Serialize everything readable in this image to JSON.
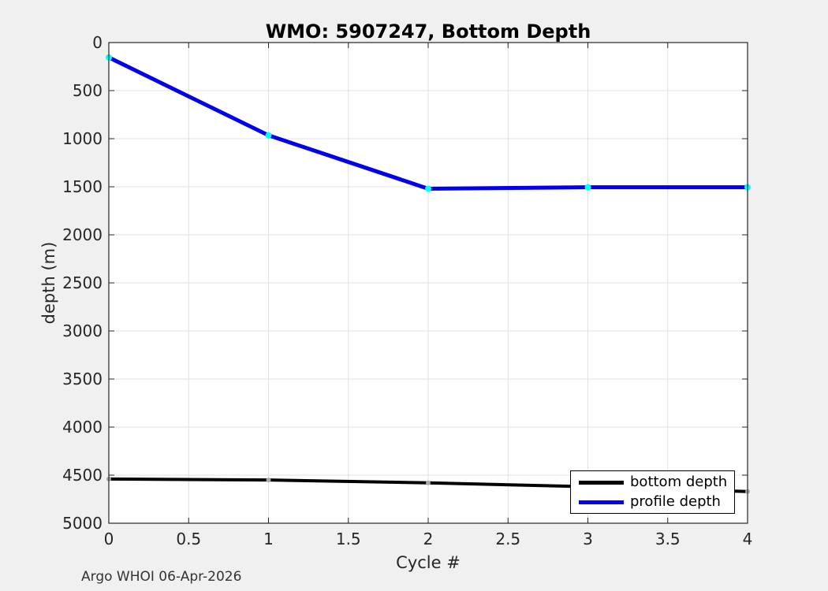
{
  "title": "WMO: 5907247, Bottom Depth",
  "footer": "Argo WHOI 06-Apr-2026",
  "chart_data": {
    "type": "line",
    "title": "WMO: 5907247, Bottom Depth",
    "xlabel": "Cycle #",
    "ylabel": "depth (m)",
    "x": [
      0,
      1,
      2,
      3,
      4
    ],
    "series": [
      {
        "name": "bottom depth",
        "color": "#000000",
        "marker_color": "#a9a9a9",
        "line_width": 4,
        "marker_radius": 3,
        "values": [
          4540,
          4550,
          4580,
          4620,
          4670
        ]
      },
      {
        "name": "profile depth",
        "color": "#0000ee",
        "marker_color": "#00ffff",
        "line_width": 5,
        "marker_radius": 4,
        "values": [
          155,
          965,
          1520,
          1505,
          1505
        ]
      }
    ],
    "xlim": [
      0,
      4
    ],
    "ylim": [
      0,
      5000
    ],
    "y_axis_inverted": true,
    "x_ticks": [
      0,
      0.5,
      1,
      1.5,
      2,
      2.5,
      3,
      3.5,
      4
    ],
    "x_tick_labels": [
      "0",
      "0.5",
      "1",
      "1.5",
      "2",
      "2.5",
      "3",
      "3.5",
      "4"
    ],
    "y_ticks": [
      0,
      500,
      1000,
      1500,
      2000,
      2500,
      3000,
      3500,
      4000,
      4500,
      5000
    ],
    "y_tick_labels": [
      "0",
      "500",
      "1000",
      "1500",
      "2000",
      "2500",
      "3000",
      "3500",
      "4000",
      "4500",
      "5000"
    ],
    "grid": true,
    "legend_position": "bottom-right",
    "colors": {
      "figure_background": "#f0f0f0",
      "plot_background": "#ffffff",
      "grid": "#e0e0e0",
      "axis": "#262626",
      "tick_text": "#262626"
    }
  },
  "legend": {
    "items": [
      {
        "label": "bottom depth",
        "color": "#000000"
      },
      {
        "label": "profile depth",
        "color": "#0000ee"
      }
    ]
  }
}
